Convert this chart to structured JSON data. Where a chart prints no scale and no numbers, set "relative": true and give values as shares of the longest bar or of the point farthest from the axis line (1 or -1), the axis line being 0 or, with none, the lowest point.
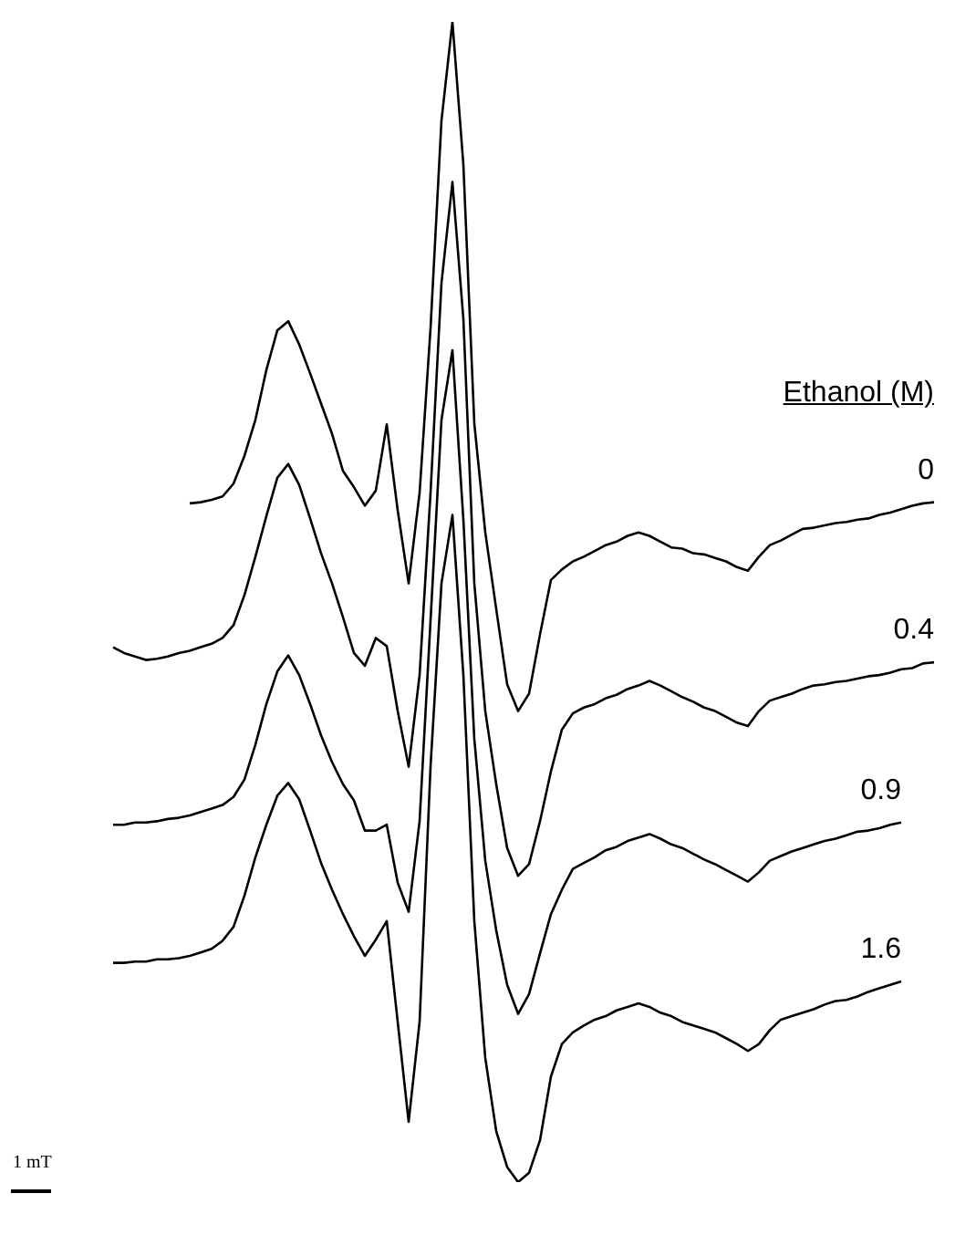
{
  "chart_data": {
    "type": "line",
    "relative": true,
    "tick_labels": false,
    "marker": "none",
    "legend_title": "Ethanol (M)",
    "annotations": [
      "1 mT"
    ],
    "categories": [
      null,
      null,
      null,
      null,
      null,
      null,
      null,
      null,
      null,
      null,
      null,
      null,
      null,
      null,
      null,
      null,
      null,
      null,
      null,
      null,
      null,
      null,
      null,
      null,
      null,
      null,
      null,
      null,
      null,
      null,
      null,
      null,
      null,
      null,
      null,
      null,
      null,
      null,
      null,
      null,
      null,
      null,
      null,
      null,
      null,
      null,
      null,
      null,
      null,
      null,
      null,
      null,
      null,
      null,
      null,
      null,
      null,
      null,
      null,
      null,
      null,
      null,
      null,
      null,
      null,
      null,
      null,
      null,
      null,
      null,
      null,
      null,
      null,
      null,
      null,
      null
    ],
    "series": [
      {
        "name": "0",
        "color": "#000000",
        "values": [
          null,
          null,
          null,
          null,
          null,
          null,
          null,
          0.585,
          0.586,
          0.588,
          0.591,
          0.602,
          0.626,
          0.657,
          0.7,
          0.734,
          0.742,
          0.722,
          0.697,
          0.671,
          0.645,
          0.613,
          0.599,
          0.583,
          0.596,
          0.653,
          0.579,
          0.516,
          0.594,
          0.736,
          0.915,
          1,
          0.877,
          0.654,
          0.56,
          0.494,
          0.429,
          0.406,
          0.421,
          0.472,
          0.519,
          0.528,
          0.535,
          0.539,
          0.544,
          0.549,
          0.552,
          0.557,
          0.56,
          0.557,
          0.552,
          0.547,
          0.546,
          0.542,
          0.541,
          0.538,
          0.535,
          0.53,
          0.527,
          0.539,
          0.549,
          0.553,
          0.558,
          0.563,
          0.564,
          0.566,
          0.568,
          0.569,
          0.571,
          0.572,
          0.575,
          0.577,
          0.58,
          0.583,
          0.585,
          0.586
        ]
      },
      {
        "name": "0.4",
        "color": "#000000",
        "values": [
          0.461,
          0.456,
          0.453,
          0.45,
          0.451,
          0.453,
          0.456,
          0.458,
          0.461,
          0.464,
          0.469,
          0.48,
          0.506,
          0.539,
          0.574,
          0.607,
          0.619,
          0.601,
          0.572,
          0.542,
          0.516,
          0.487,
          0.456,
          0.445,
          0.469,
          0.462,
          0.406,
          0.358,
          0.437,
          0.594,
          0.775,
          0.862,
          0.744,
          0.516,
          0.406,
          0.343,
          0.288,
          0.264,
          0.274,
          0.311,
          0.354,
          0.39,
          0.404,
          0.409,
          0.412,
          0.417,
          0.42,
          0.425,
          0.428,
          0.432,
          0.428,
          0.423,
          0.418,
          0.414,
          0.409,
          0.406,
          0.401,
          0.396,
          0.393,
          0.406,
          0.415,
          0.418,
          0.421,
          0.425,
          0.428,
          0.429,
          0.431,
          0.432,
          0.434,
          0.436,
          0.437,
          0.439,
          0.442,
          0.443,
          0.447,
          0.448
        ]
      },
      {
        "name": "0.9",
        "color": "#000000",
        "values": [
          0.308,
          0.308,
          0.31,
          0.31,
          0.311,
          0.313,
          0.314,
          0.316,
          0.319,
          0.322,
          0.325,
          0.332,
          0.347,
          0.377,
          0.412,
          0.44,
          0.454,
          0.437,
          0.412,
          0.385,
          0.362,
          0.343,
          0.329,
          0.303,
          0.303,
          0.308,
          0.258,
          0.233,
          0.311,
          0.484,
          0.657,
          0.717,
          0.571,
          0.382,
          0.277,
          0.217,
          0.17,
          0.145,
          0.162,
          0.197,
          0.231,
          0.252,
          0.27,
          0.275,
          0.28,
          0.286,
          0.289,
          0.294,
          0.297,
          0.3,
          0.296,
          0.291,
          0.288,
          0.283,
          0.278,
          0.274,
          0.269,
          0.264,
          0.259,
          0.267,
          0.277,
          0.281,
          0.285,
          0.288,
          0.291,
          0.294,
          0.296,
          0.299,
          0.302,
          0.303,
          0.305,
          0.308,
          0.31,
          null,
          null,
          null
        ]
      },
      {
        "name": "1.6",
        "color": "#000000",
        "values": [
          0.189,
          0.189,
          0.19,
          0.19,
          0.192,
          0.192,
          0.193,
          0.195,
          0.198,
          0.201,
          0.208,
          0.22,
          0.247,
          0.28,
          0.308,
          0.333,
          0.344,
          0.33,
          0.303,
          0.275,
          0.252,
          0.231,
          0.212,
          0.195,
          0.209,
          0.225,
          0.138,
          0.052,
          0.138,
          0.358,
          0.516,
          0.575,
          0.437,
          0.225,
          0.107,
          0.044,
          0.013,
          0,
          0.008,
          0.036,
          0.091,
          0.119,
          0.129,
          0.135,
          0.14,
          0.143,
          0.148,
          0.151,
          0.154,
          0.151,
          0.146,
          0.143,
          0.138,
          0.135,
          0.132,
          0.129,
          0.124,
          0.119,
          0.113,
          0.119,
          0.131,
          0.14,
          0.143,
          0.146,
          0.149,
          0.153,
          0.156,
          0.157,
          0.16,
          0.164,
          0.167,
          0.17,
          0.173,
          null,
          null,
          null
        ]
      }
    ]
  }
}
